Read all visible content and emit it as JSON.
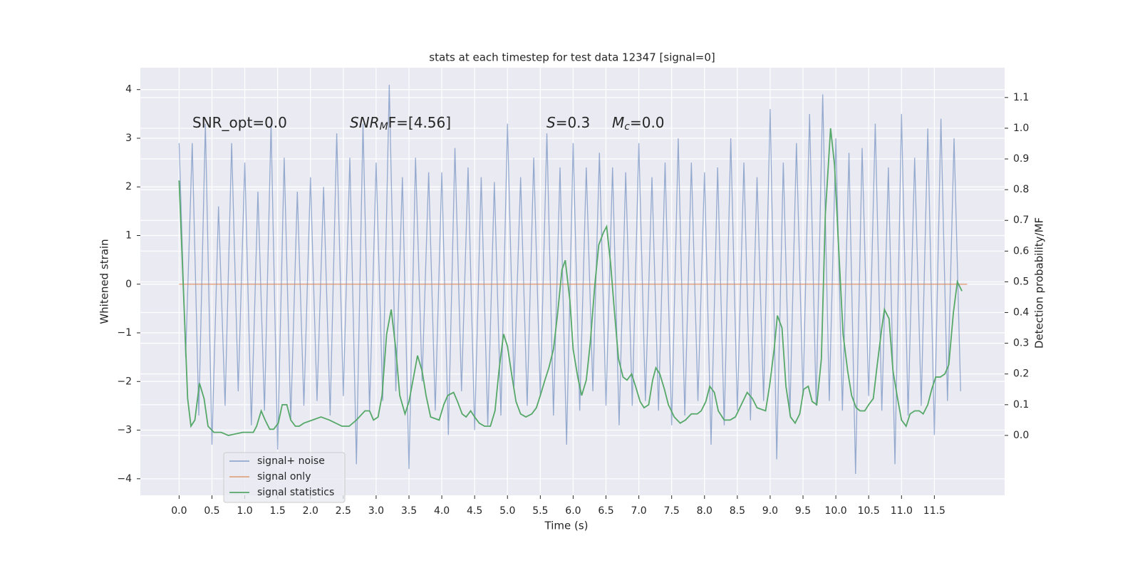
{
  "chart_data": {
    "type": "line",
    "title": "stats at each timestep for test data 12347 [signal=0]",
    "xlabel": "Time (s)",
    "ylabel": "Whitened strain",
    "y2label": "Detection probability/MF",
    "xlim": [
      -0.59,
      12.57
    ],
    "ylim": [
      -4.34,
      4.45
    ],
    "y2lim": [
      -0.195,
      1.197
    ],
    "xticks": [
      {
        "value": 0,
        "label": "0.0"
      },
      0.5,
      {
        "value": 1,
        "label": "1.0"
      },
      1.5,
      {
        "value": 2,
        "label": "2.0"
      },
      2.5,
      {
        "value": 3,
        "label": "3.0"
      },
      3.5,
      {
        "value": 4,
        "label": "4.0"
      },
      4.5,
      {
        "value": 5,
        "label": "5.0"
      },
      5.5,
      {
        "value": 6,
        "label": "6.0"
      },
      6.5,
      {
        "value": 7,
        "label": "7.0"
      },
      7.5,
      {
        "value": 8,
        "label": "8.0"
      },
      8.5,
      {
        "value": 9,
        "label": "9.0"
      },
      9.5,
      {
        "value": 10,
        "label": "10.0"
      },
      10.5,
      {
        "value": 11,
        "label": "11.0"
      },
      11.5
    ],
    "yticks": [
      {
        "value": -4,
        "label": "−4"
      },
      {
        "value": -3,
        "label": "−3"
      },
      {
        "value": -2,
        "label": "−2"
      },
      {
        "value": -1,
        "label": "−1"
      },
      0,
      1,
      2,
      3,
      4
    ],
    "y2ticks": [
      {
        "value": 0,
        "label": "0.0"
      },
      0.1,
      0.2,
      0.3,
      0.4,
      0.5,
      0.6,
      0.7,
      0.8,
      0.9,
      {
        "value": 1,
        "label": "1.0"
      },
      1.1
    ],
    "grid": true,
    "legend": "lower left",
    "annotations": [
      {
        "text": "SNR_opt=0.0"
      },
      {
        "text": "SNR",
        "sub": "M",
        "after": "F=[4.56]"
      },
      {
        "text": "S",
        "after": "=0.3"
      },
      {
        "text": "M",
        "sub": "c",
        "after": "=0.0"
      }
    ],
    "series": [
      {
        "name": "signal+ noise",
        "color": "#4c72b0",
        "x": [
          0,
          0.1,
          0.2,
          0.3,
          0.4,
          0.5,
          0.6,
          0.7,
          0.8,
          0.9,
          1,
          1.1,
          1.2,
          1.3,
          1.4,
          1.5,
          1.6,
          1.7,
          1.8,
          1.9,
          2,
          2.1,
          2.2,
          2.3,
          2.4,
          2.5,
          2.6,
          2.7,
          2.8,
          2.9,
          3,
          3.1,
          3.2,
          3.3,
          3.4,
          3.5,
          3.6,
          3.7,
          3.8,
          3.9,
          4,
          4.1,
          4.2,
          4.3,
          4.4,
          4.5,
          4.6,
          4.7,
          4.8,
          4.9,
          5,
          5.1,
          5.2,
          5.3,
          5.4,
          5.5,
          5.6,
          5.7,
          5.8,
          5.9,
          6,
          6.1,
          6.2,
          6.3,
          6.4,
          6.5,
          6.6,
          6.7,
          6.8,
          6.9,
          7,
          7.1,
          7.2,
          7.3,
          7.4,
          7.5,
          7.6,
          7.7,
          7.8,
          7.9,
          8,
          8.1,
          8.2,
          8.3,
          8.4,
          8.5,
          8.6,
          8.7,
          8.8,
          8.9,
          9,
          9.1,
          9.2,
          9.3,
          9.4,
          9.5,
          9.6,
          9.7,
          9.8,
          9.9,
          10,
          10.1,
          10.2,
          10.3,
          10.4,
          10.5,
          10.6,
          10.7,
          10.8,
          10.9,
          11,
          11.1,
          11.2,
          11.3,
          11.4,
          11.5,
          11.6,
          11.7,
          11.8,
          11.9
        ],
        "values": [
          2.9,
          -1.5,
          2.9,
          -2.7,
          3.3,
          -3.3,
          1.6,
          -2.5,
          2.9,
          -2.2,
          2.5,
          -2.9,
          1.9,
          -2.6,
          3.3,
          -3.4,
          2.6,
          -2.8,
          1.9,
          -2.5,
          2.2,
          -2.4,
          2.0,
          -2.7,
          3.1,
          -2.3,
          2.6,
          -3.7,
          3.3,
          -2.6,
          2.5,
          -2.4,
          4.1,
          -2.2,
          2.2,
          -3.8,
          2.6,
          -2.0,
          2.3,
          -2.6,
          2.3,
          -3.1,
          2.8,
          -2.2,
          2.4,
          -3.0,
          2.2,
          -2.9,
          2.1,
          -2.7,
          3.3,
          -2.1,
          2.2,
          -2.5,
          2.6,
          -2.3,
          3.1,
          -2.7,
          2.4,
          -3.3,
          2.9,
          -2.6,
          2.4,
          -2.2,
          2.7,
          -2.5,
          2.4,
          -2.9,
          2.3,
          -2.5,
          2.9,
          -2.4,
          2.2,
          -2.6,
          2.5,
          -2.9,
          3.0,
          -2.7,
          2.5,
          -2.4,
          2.3,
          -3.3,
          2.4,
          -2.9,
          3.0,
          -2.6,
          2.5,
          -2.8,
          2.2,
          -2.4,
          3.6,
          -3.6,
          2.5,
          -2.7,
          2.9,
          -2.3,
          3.5,
          -2.5,
          3.9,
          -2.4,
          3.0,
          -2.6,
          2.7,
          -3.9,
          2.8,
          -2.3,
          3.3,
          -2.6,
          2.4,
          -3.7,
          3.5,
          -2.7,
          2.6,
          -2.5,
          3.2,
          -3.1,
          3.4,
          -2.4,
          3.0,
          -2.2
        ]
      },
      {
        "name": "signal only",
        "color": "#dd8452",
        "x": [
          0,
          12
        ],
        "values": [
          0,
          0
        ]
      },
      {
        "name": "signal statistics",
        "color": "#55a868",
        "axis": "y2",
        "x": [
          0,
          0.07,
          0.13,
          0.18,
          0.24,
          0.31,
          0.38,
          0.44,
          0.53,
          0.64,
          0.75,
          0.97,
          1.13,
          1.18,
          1.25,
          1.31,
          1.38,
          1.44,
          1.51,
          1.57,
          1.64,
          1.7,
          1.77,
          1.83,
          1.9,
          2.03,
          2.16,
          2.29,
          2.48,
          2.59,
          2.7,
          2.83,
          2.9,
          2.96,
          3.03,
          3.09,
          3.16,
          3.23,
          3.3,
          3.36,
          3.44,
          3.5,
          3.57,
          3.63,
          3.7,
          3.76,
          3.83,
          3.96,
          4.03,
          4.09,
          4.18,
          4.24,
          4.31,
          4.37,
          4.44,
          4.5,
          4.57,
          4.65,
          4.74,
          4.81,
          4.87,
          4.94,
          5.0,
          5.07,
          5.13,
          5.2,
          5.28,
          5.37,
          5.44,
          5.5,
          5.57,
          5.63,
          5.7,
          5.76,
          5.83,
          5.88,
          5.95,
          6.0,
          6.07,
          6.13,
          6.2,
          6.26,
          6.33,
          6.39,
          6.46,
          6.51,
          6.57,
          6.63,
          6.69,
          6.76,
          6.82,
          6.89,
          6.95,
          7.02,
          7.08,
          7.15,
          7.21,
          7.26,
          7.32,
          7.39,
          7.45,
          7.54,
          7.63,
          7.71,
          7.8,
          7.89,
          7.95,
          8.02,
          8.08,
          8.15,
          8.21,
          8.3,
          8.39,
          8.47,
          8.56,
          8.65,
          8.73,
          8.8,
          8.93,
          8.99,
          9.06,
          9.11,
          9.18,
          9.24,
          9.31,
          9.38,
          9.45,
          9.51,
          9.58,
          9.64,
          9.71,
          9.78,
          9.84,
          9.92,
          9.98,
          10.05,
          10.11,
          10.18,
          10.24,
          10.31,
          10.37,
          10.44,
          10.5,
          10.57,
          10.63,
          10.7,
          10.74,
          10.81,
          10.87,
          10.94,
          11.0,
          11.07,
          11.13,
          11.2,
          11.27,
          11.33,
          11.4,
          11.46,
          11.52,
          11.59,
          11.66,
          11.72,
          11.79,
          11.85,
          11.92
        ],
        "values": [
          0.83,
          0.45,
          0.12,
          0.03,
          0.05,
          0.17,
          0.12,
          0.03,
          0.01,
          0.01,
          0.0,
          0.01,
          0.01,
          0.03,
          0.08,
          0.05,
          0.02,
          0.02,
          0.04,
          0.1,
          0.1,
          0.05,
          0.03,
          0.03,
          0.04,
          0.05,
          0.06,
          0.05,
          0.03,
          0.03,
          0.05,
          0.08,
          0.08,
          0.05,
          0.06,
          0.13,
          0.33,
          0.41,
          0.28,
          0.13,
          0.07,
          0.11,
          0.19,
          0.26,
          0.21,
          0.13,
          0.06,
          0.05,
          0.1,
          0.13,
          0.14,
          0.11,
          0.07,
          0.06,
          0.08,
          0.06,
          0.04,
          0.03,
          0.03,
          0.08,
          0.21,
          0.33,
          0.29,
          0.19,
          0.11,
          0.07,
          0.06,
          0.07,
          0.09,
          0.13,
          0.18,
          0.22,
          0.28,
          0.39,
          0.54,
          0.57,
          0.44,
          0.28,
          0.19,
          0.13,
          0.18,
          0.3,
          0.49,
          0.62,
          0.66,
          0.68,
          0.56,
          0.4,
          0.25,
          0.19,
          0.18,
          0.2,
          0.16,
          0.11,
          0.09,
          0.1,
          0.18,
          0.22,
          0.2,
          0.15,
          0.1,
          0.06,
          0.04,
          0.05,
          0.07,
          0.07,
          0.08,
          0.11,
          0.16,
          0.14,
          0.08,
          0.05,
          0.05,
          0.06,
          0.1,
          0.14,
          0.12,
          0.09,
          0.08,
          0.16,
          0.28,
          0.39,
          0.35,
          0.16,
          0.06,
          0.04,
          0.07,
          0.15,
          0.16,
          0.11,
          0.1,
          0.25,
          0.72,
          1.0,
          0.88,
          0.58,
          0.33,
          0.21,
          0.13,
          0.09,
          0.08,
          0.08,
          0.1,
          0.12,
          0.23,
          0.35,
          0.41,
          0.38,
          0.21,
          0.12,
          0.05,
          0.03,
          0.07,
          0.08,
          0.08,
          0.07,
          0.1,
          0.15,
          0.19,
          0.19,
          0.2,
          0.23,
          0.4,
          0.5,
          0.47
        ]
      }
    ]
  }
}
